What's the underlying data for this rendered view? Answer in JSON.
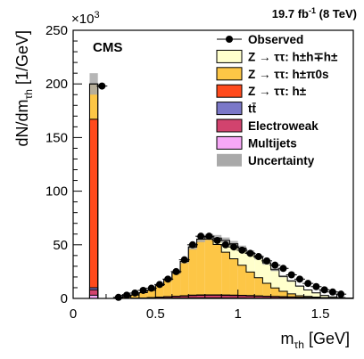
{
  "chart_data": {
    "type": "bar",
    "stacked": true,
    "histogram": true,
    "title": "",
    "lumi_label": "19.7 fb",
    "lumi_sup": "-1",
    "energy_label": "(8 TeV)",
    "experiment": "CMS",
    "ylabel": "dN/dm",
    "ylabel_sub": "τh",
    "ylabel_unit": "[1/GeV]",
    "xlabel": "m",
    "xlabel_sub": "τh",
    "xlabel_unit": "[GeV]",
    "y_exponent_base": "×10",
    "y_exponent_power": "3",
    "xlim": [
      0,
      1.7
    ],
    "ylim": [
      0,
      250
    ],
    "x_ticks": [
      0,
      0.5,
      1,
      1.5
    ],
    "x_tick_labels": [
      "0",
      "0.5",
      "1",
      "1.5"
    ],
    "y_ticks": [
      0,
      50,
      100,
      150,
      200,
      250
    ],
    "y_tick_labels": [
      "0",
      "50",
      "100",
      "150",
      "200",
      "250"
    ],
    "bin_edges": [
      0,
      0.1,
      0.15,
      0.2,
      0.25,
      0.3,
      0.35,
      0.4,
      0.45,
      0.5,
      0.55,
      0.6,
      0.65,
      0.7,
      0.75,
      0.8,
      0.85,
      0.9,
      0.95,
      1.0,
      1.05,
      1.1,
      1.15,
      1.2,
      1.25,
      1.3,
      1.35,
      1.4,
      1.45,
      1.5,
      1.55,
      1.6,
      1.65,
      1.7
    ],
    "series": [
      {
        "name": "Multijets",
        "color": "#f7a8f7",
        "values": [
          0,
          3,
          0,
          0,
          0,
          0,
          0,
          0,
          0,
          0.2,
          0.3,
          0.4,
          0.4,
          0.5,
          0.5,
          0.5,
          0.5,
          0.4,
          0.4,
          0.4,
          0.3,
          0.3,
          0.3,
          0.2,
          0.2,
          0.2,
          0.1,
          0.1,
          0.1,
          0,
          0,
          0,
          0
        ]
      },
      {
        "name": "Electroweak",
        "color": "#d2436e",
        "values": [
          0,
          5,
          0,
          0,
          0,
          0,
          0.2,
          0.4,
          0.6,
          0.9,
          1.2,
          1.5,
          1.8,
          2.2,
          2.4,
          2.5,
          2.5,
          2.4,
          2.3,
          2.2,
          2.0,
          1.8,
          1.6,
          1.4,
          1.2,
          1.0,
          0.8,
          0.7,
          0.5,
          0.4,
          0.3,
          0.2,
          0.2
        ]
      },
      {
        "name": "tt̄",
        "color": "#7b78c8",
        "values": [
          0,
          2,
          0,
          0,
          0,
          0,
          0,
          0,
          0.1,
          0.1,
          0.2,
          0.2,
          0.3,
          0.3,
          0.3,
          0.3,
          0.3,
          0.3,
          0.3,
          0.3,
          0.3,
          0.2,
          0.2,
          0.2,
          0.2,
          0.1,
          0.1,
          0.1,
          0.1,
          0.1,
          0,
          0,
          0
        ]
      },
      {
        "name": "Z → ττ: h±",
        "color": "#ff4a1c",
        "values": [
          0,
          157,
          0,
          0,
          0,
          0,
          0,
          0,
          0,
          0,
          0,
          0,
          0,
          0,
          0,
          0,
          0,
          0,
          0,
          0,
          0,
          0,
          0,
          0,
          0,
          0,
          0,
          0,
          0,
          0,
          0,
          0,
          0
        ]
      },
      {
        "name": "Z → ττ: h±π0s",
        "color": "#fdc646",
        "values": [
          0,
          33,
          0,
          0,
          0.5,
          1.5,
          3,
          5,
          7,
          11,
          16,
          22,
          32,
          45,
          52,
          52,
          47,
          40,
          34,
          28,
          22,
          17,
          12,
          8,
          5,
          3,
          1.5,
          1,
          0.5,
          0.3,
          0.2,
          0.1,
          0
        ]
      },
      {
        "name": "Z → ττ: h±h∓h±",
        "color": "#ffffcc",
        "values": [
          0,
          0,
          0,
          0,
          0,
          0,
          0,
          0,
          0,
          0,
          0,
          0,
          0,
          0,
          0,
          2,
          6,
          11,
          14,
          16,
          18,
          19,
          19,
          17,
          14,
          12,
          9,
          6,
          4,
          2,
          1,
          0.5,
          0
        ]
      }
    ],
    "observed": {
      "name": "Observed",
      "x": [
        0.175,
        0.275,
        0.325,
        0.375,
        0.425,
        0.475,
        0.525,
        0.575,
        0.625,
        0.675,
        0.725,
        0.775,
        0.825,
        0.875,
        0.925,
        0.975,
        1.025,
        1.075,
        1.125,
        1.175,
        1.225,
        1.275,
        1.325,
        1.375,
        1.425,
        1.475,
        1.525,
        1.575,
        1.625
      ],
      "y": [
        198,
        1,
        3,
        5,
        7.5,
        9.5,
        13,
        18,
        25,
        36,
        50,
        58,
        58,
        54,
        50,
        48,
        45,
        42,
        39,
        35,
        31,
        28,
        22,
        18,
        14,
        11,
        8,
        6,
        4
      ]
    },
    "uncertainty": {
      "name": "Uncertainty",
      "color": "#a9a9a9",
      "relative": 0.05
    },
    "legend": {
      "placement": "top-right",
      "entries": [
        {
          "label": "Observed",
          "kind": "marker"
        },
        {
          "label": "Z → ττ: h±h∓h±",
          "kind": "fill",
          "color": "#ffffcc"
        },
        {
          "label": "Z → ττ: h±π0s",
          "kind": "fill",
          "color": "#fdc646"
        },
        {
          "label": "Z → ττ: h±",
          "kind": "fill",
          "color": "#ff4a1c"
        },
        {
          "label": "tt̄",
          "kind": "fill",
          "color": "#7b78c8"
        },
        {
          "label": "Electroweak",
          "kind": "fill",
          "color": "#d2436e"
        },
        {
          "label": "Multijets",
          "kind": "fill",
          "color": "#f7a8f7"
        },
        {
          "label": "Uncertainty",
          "kind": "fill",
          "color": "#a9a9a9"
        }
      ]
    }
  }
}
